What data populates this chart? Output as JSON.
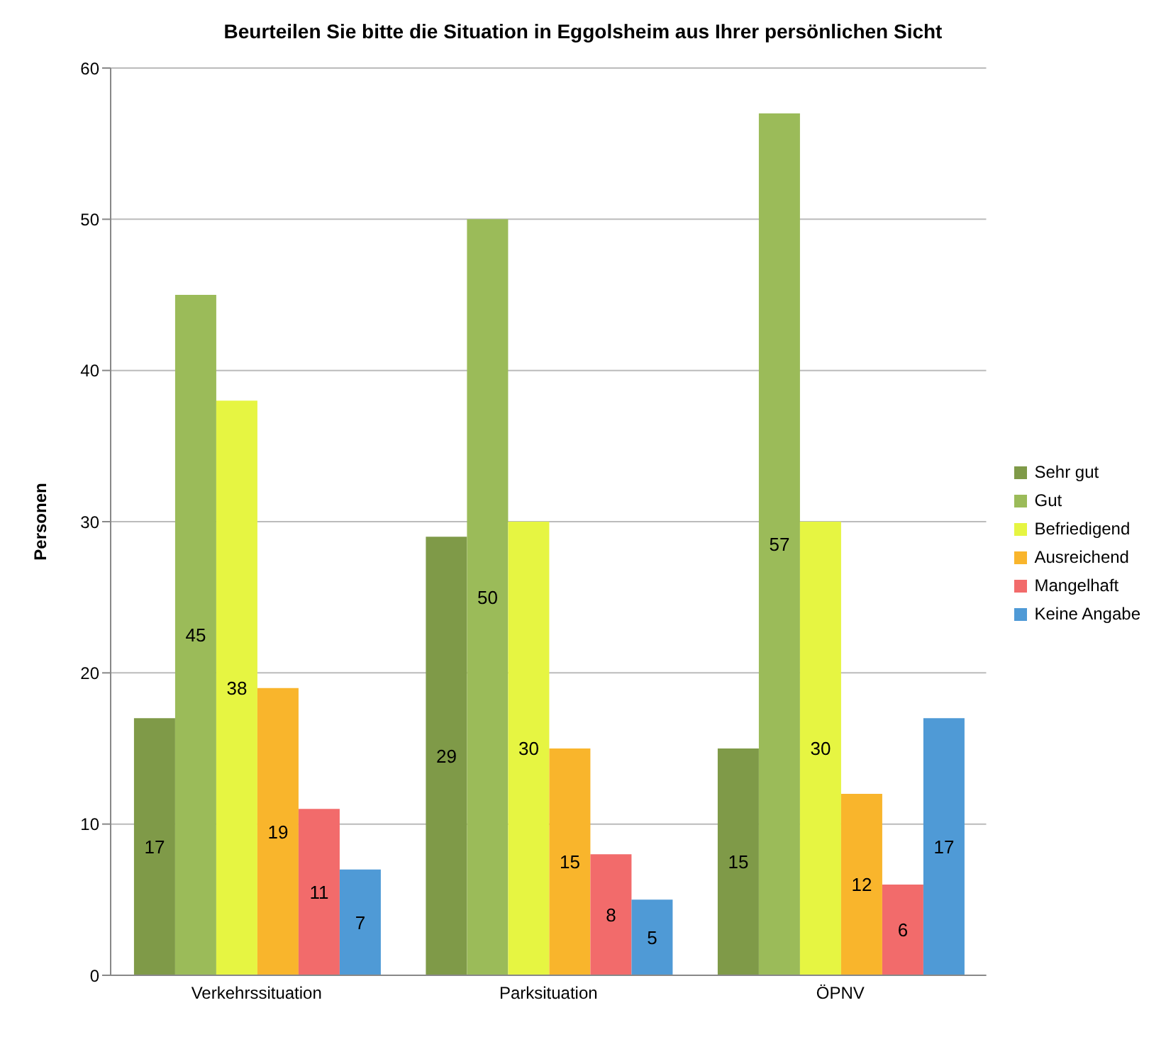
{
  "chart_data": {
    "type": "bar",
    "title": "Beurteilen Sie bitte die Situation in Eggolsheim aus Ihrer persönlichen Sicht",
    "ylabel": "Personen",
    "categories": [
      "Verkehrssituation",
      "Parksituation",
      "ÖPNV"
    ],
    "series": [
      {
        "name": "Sehr gut",
        "color": "#7f9a48",
        "values": [
          17,
          29,
          15
        ]
      },
      {
        "name": "Gut",
        "color": "#9bbb59",
        "values": [
          45,
          50,
          57
        ]
      },
      {
        "name": "Befriedigend",
        "color": "#e6f542",
        "values": [
          38,
          30,
          30
        ]
      },
      {
        "name": "Ausreichend",
        "color": "#f9b52c",
        "values": [
          19,
          15,
          12
        ]
      },
      {
        "name": "Mangelhaft",
        "color": "#f26b6b",
        "values": [
          11,
          8,
          6
        ]
      },
      {
        "name": "Keine Angabe",
        "color": "#4f9ad6",
        "values": [
          7,
          5,
          17
        ]
      }
    ],
    "ylim": [
      0,
      60
    ],
    "yticks": [
      0,
      10,
      20,
      30,
      40,
      50,
      60
    ],
    "grid": "y",
    "legend": "right",
    "data_labels": true
  }
}
